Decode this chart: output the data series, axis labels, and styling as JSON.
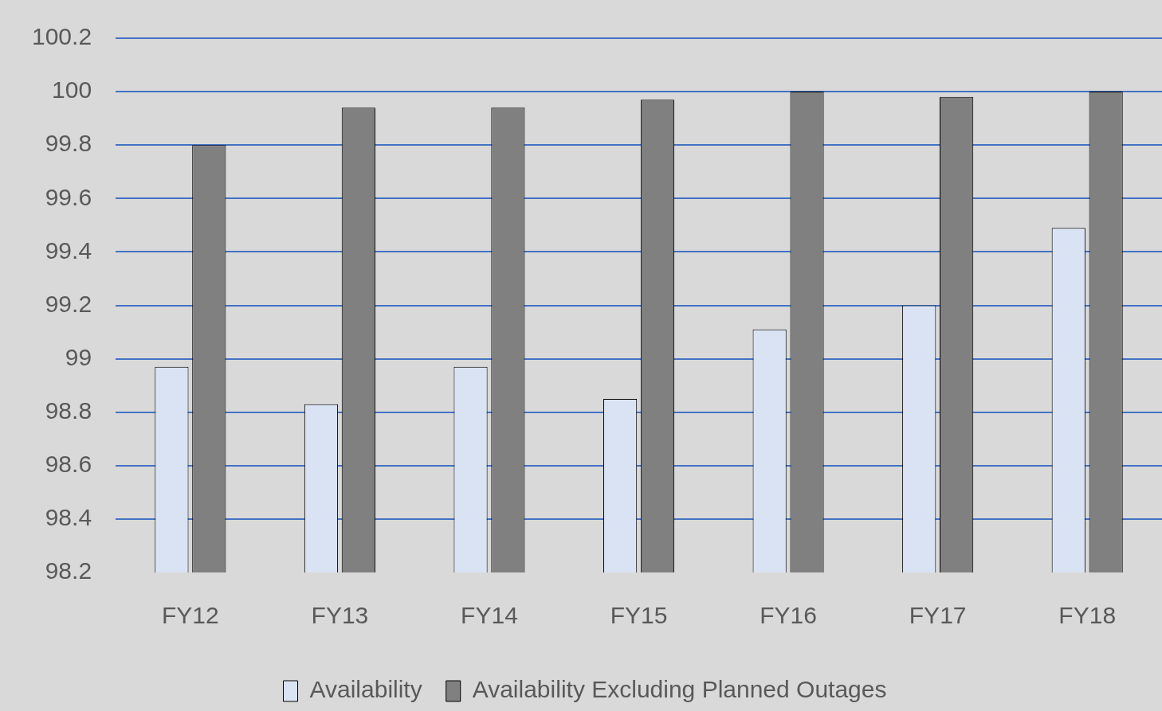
{
  "chart_data": {
    "type": "bar",
    "categories": [
      "FY12",
      "FY13",
      "FY14",
      "FY15",
      "FY16",
      "FY17",
      "FY18"
    ],
    "series": [
      {
        "name": "Availability",
        "color": "#dae3f3",
        "values": [
          98.97,
          98.83,
          98.97,
          98.85,
          99.11,
          99.2,
          99.49
        ]
      },
      {
        "name": "Availability Excluding Planned Outages",
        "color": "#808080",
        "values": [
          99.8,
          99.94,
          99.94,
          99.97,
          100,
          99.98,
          100
        ]
      }
    ],
    "ylim": [
      98.2,
      100.2
    ],
    "yticks": [
      98.2,
      98.4,
      98.6,
      98.8,
      99,
      99.2,
      99.4,
      99.6,
      99.8,
      100,
      100.2
    ],
    "grid": "y",
    "legend": "bottom"
  }
}
